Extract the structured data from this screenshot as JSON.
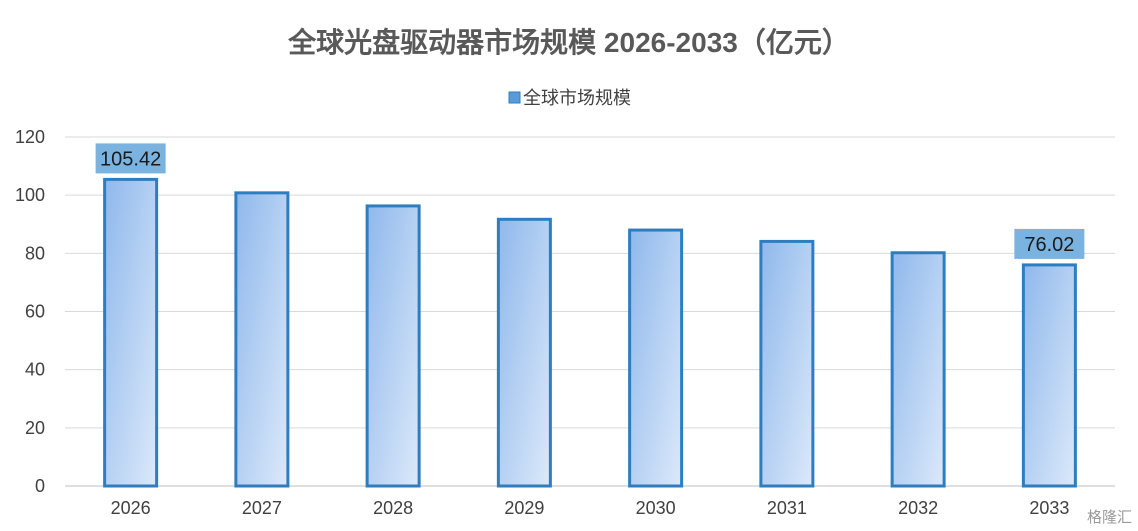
{
  "chart_data": {
    "type": "bar",
    "title": "全球光盘驱动器市场规模 2026-2033（亿元）",
    "categories": [
      "2026",
      "2027",
      "2028",
      "2029",
      "2030",
      "2031",
      "2032",
      "2033"
    ],
    "series": [
      {
        "name": "全球市场规模",
        "values": [
          105.42,
          100.8,
          96.3,
          91.7,
          88.0,
          84.1,
          80.2,
          76.02
        ]
      }
    ],
    "data_labels": [
      {
        "category": "2026",
        "text": "105.42"
      },
      {
        "category": "2033",
        "text": "76.02"
      }
    ],
    "xlabel": "",
    "ylabel": "",
    "ylim": [
      0,
      120
    ],
    "yticks": [
      0,
      20,
      40,
      60,
      80,
      100,
      120
    ],
    "grid": true,
    "legend_position": "top-center",
    "colors": {
      "bar_fill_start": "#8fb8ec",
      "bar_fill_end": "#dce9fa",
      "bar_stroke": "#2e7ebf",
      "label_box": "#7bb3e0",
      "legend_marker": "#5b9bd5"
    }
  },
  "watermark": "格隆汇"
}
